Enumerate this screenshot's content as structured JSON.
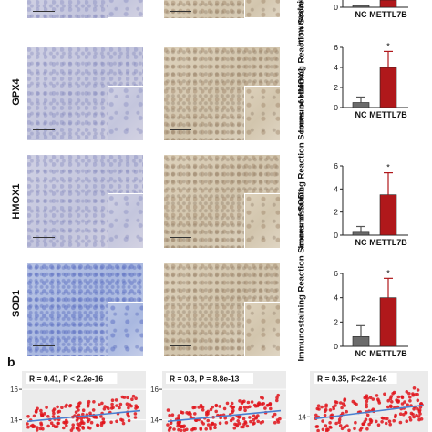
{
  "panel_b_label": "b",
  "micro_rows": [
    {
      "marker": ""
    },
    {
      "marker": "GPX4"
    },
    {
      "marker": "HMOX1"
    },
    {
      "marker": "SOD1"
    }
  ],
  "colors": {
    "nc_bar": "#6b6b6b",
    "mettl7b_bar": "#b0181b",
    "error_bar_nc": "#555555",
    "error_bar_mettl7b": "#b0181b",
    "scatter_point": "#e0141b",
    "fit_line": "#4a7fd0",
    "nc_tissue": "#c9cbe0",
    "mettl7b_tissue": "#d8cbb4"
  },
  "chart_data": [
    {
      "type": "bar",
      "panel": "top-partial",
      "categories": [
        "NC",
        "METTL7B"
      ],
      "values": [
        null,
        null
      ],
      "ylabel": "Immunostaining Reaction Scores",
      "ylim": [
        0,
        6
      ],
      "yticks": [
        "0"
      ],
      "visible_tick_labels": true
    },
    {
      "type": "bar",
      "categories": [
        "NC",
        "METTL7B"
      ],
      "values": [
        0.5,
        4.0
      ],
      "errors": [
        0.55,
        1.6
      ],
      "significance": [
        "",
        "*"
      ],
      "ylabel": "Immunostaining Reaction Scores of GPX4",
      "ylim": [
        0,
        6
      ],
      "yticks": [
        "0",
        "2",
        "4",
        "6"
      ]
    },
    {
      "type": "bar",
      "categories": [
        "NC",
        "METTL7B"
      ],
      "values": [
        0.25,
        3.5
      ],
      "errors": [
        0.5,
        1.9
      ],
      "significance": [
        "",
        "*"
      ],
      "ylabel": "Immunostaining Reaction Scores of HMOX1",
      "ylim": [
        0,
        6
      ],
      "yticks": [
        "0",
        "2",
        "4",
        "6"
      ]
    },
    {
      "type": "bar",
      "categories": [
        "NC",
        "METTL7B"
      ],
      "values": [
        0.8,
        4.0
      ],
      "errors": [
        0.9,
        1.6
      ],
      "significance": [
        "",
        "*"
      ],
      "ylabel": "Immunostaining Reaction Scores of SOD1",
      "ylim": [
        0,
        6
      ],
      "yticks": [
        "0",
        "2",
        "4",
        "6"
      ]
    },
    {
      "type": "scatter",
      "annotation": "R = 0.41, P < 2.2e-16",
      "yticks": [
        "14",
        "16"
      ],
      "ylim": [
        13.2,
        17.2
      ]
    },
    {
      "type": "scatter",
      "annotation": "R = 0.3, P = 8.8e-13",
      "yticks": [
        "14",
        "16"
      ],
      "ylim": [
        13.2,
        17.2
      ]
    },
    {
      "type": "scatter",
      "annotation": "R = 0.35, P<2.2e-16",
      "yticks": [
        "14"
      ],
      "ylim": [
        13.2,
        16.4
      ]
    }
  ]
}
